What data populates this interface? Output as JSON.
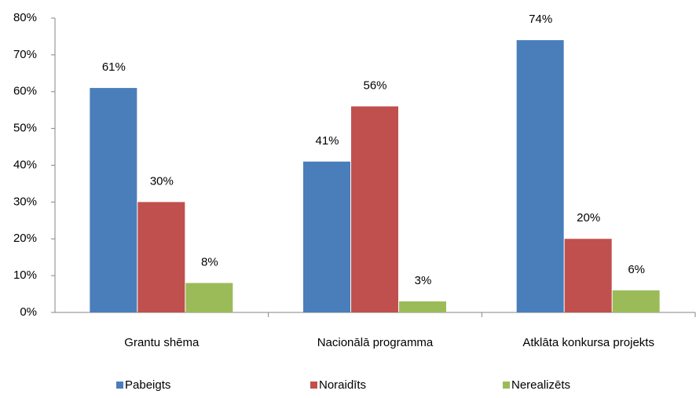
{
  "chart_data": {
    "type": "bar",
    "categories": [
      "Grantu shēma",
      "Nacionālā programma",
      "Atklāta konkursa projekts"
    ],
    "series": [
      {
        "name": "Pabeigts",
        "color": "#4a7ebb",
        "values": [
          61,
          41,
          74
        ],
        "value_labels": [
          "61%",
          "41%",
          "74%"
        ]
      },
      {
        "name": "Noraidīts",
        "color": "#c0504d",
        "values": [
          30,
          56,
          20
        ],
        "value_labels": [
          "30%",
          "56%",
          "20%"
        ]
      },
      {
        "name": "Nerealizēts",
        "color": "#9bbb59",
        "values": [
          8,
          3,
          6
        ],
        "value_labels": [
          "8%",
          "3%",
          "6%"
        ]
      }
    ],
    "ylim": [
      0,
      80
    ],
    "yticks": [
      {
        "value": 0,
        "label": "0%"
      },
      {
        "value": 10,
        "label": "10%"
      },
      {
        "value": 20,
        "label": "20%"
      },
      {
        "value": 30,
        "label": "30%"
      },
      {
        "value": 40,
        "label": "40%"
      },
      {
        "value": 50,
        "label": "50%"
      },
      {
        "value": 60,
        "label": "60%"
      },
      {
        "value": 70,
        "label": "70%"
      },
      {
        "value": 80,
        "label": "80%"
      }
    ],
    "legend": "bottom"
  }
}
